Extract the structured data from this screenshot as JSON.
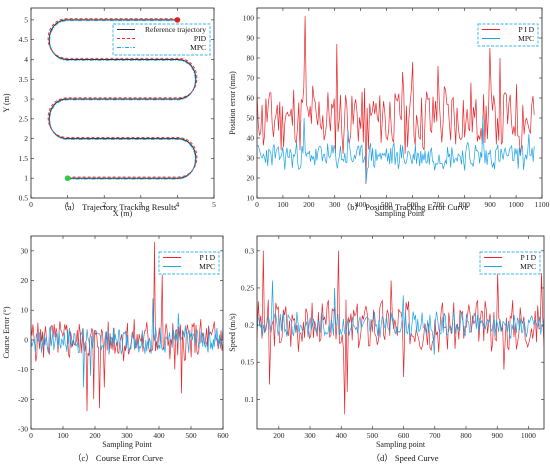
{
  "colors": {
    "pid": "#e8262b",
    "mpc": "#1ea3e6",
    "ref": "#2b2b2b",
    "start": "#2ecc40",
    "end": "#e0201e",
    "legend_border": "#31b7e8"
  },
  "chart_data": [
    {
      "type": "line",
      "caption": "（a） Trajectory Tracking Results",
      "xlabel": "X (m)",
      "ylabel": "Y (m)",
      "xlim": [
        0,
        5
      ],
      "ylim": [
        0.5,
        5.3
      ],
      "xticks": [
        0,
        1,
        2,
        3,
        4,
        5
      ],
      "yticks": [
        0.5,
        1,
        1.5,
        2,
        2.5,
        3,
        3.5,
        4,
        4.5,
        5
      ],
      "legend": {
        "position": "top-right",
        "entries": [
          "Reference trajectory",
          "PID",
          "MPC"
        ]
      },
      "grid": false,
      "series": [
        {
          "name": "Reference trajectory",
          "style": "solid",
          "points": [
            [
              1,
              1
            ],
            [
              4,
              1
            ],
            [
              4.5,
              1.5
            ],
            [
              4,
              2
            ],
            [
              1,
              2
            ],
            [
              0.5,
              2.5
            ],
            [
              1,
              3
            ],
            [
              4,
              3
            ],
            [
              4.5,
              3.5
            ],
            [
              4,
              4
            ],
            [
              1,
              4
            ],
            [
              0.5,
              4.5
            ],
            [
              1,
              5
            ],
            [
              4,
              5
            ]
          ]
        },
        {
          "name": "PID",
          "style": "dashed"
        },
        {
          "name": "MPC",
          "style": "dashdot"
        }
      ],
      "markers": [
        {
          "label": "start",
          "x": 1,
          "y": 1,
          "color": "#2ecc40"
        },
        {
          "label": "end",
          "x": 4,
          "y": 5,
          "color": "#e0201e"
        }
      ]
    },
    {
      "type": "line",
      "caption": "（b） Position Tracking Error Curve",
      "xlabel": "Sampling Point",
      "ylabel": "Position error (mm)",
      "xlim": [
        0,
        1100
      ],
      "ylim": [
        10,
        105
      ],
      "xticks": [
        0,
        100,
        200,
        300,
        400,
        500,
        600,
        700,
        800,
        900,
        1000,
        1100
      ],
      "yticks": [
        10,
        20,
        30,
        40,
        50,
        60,
        70,
        80,
        90,
        100
      ],
      "legend": {
        "position": "top-right",
        "entries": [
          "P I D",
          "MPC"
        ]
      },
      "series": [
        {
          "name": "P I D",
          "n": 220,
          "x_start": 0,
          "x_end": 1070,
          "base": 50,
          "amp": 16,
          "min": 15,
          "seed": 11,
          "spikes": [
            [
              185,
              101
            ],
            [
              310,
              87
            ],
            [
              420,
              17
            ],
            [
              560,
              73
            ],
            [
              600,
              78
            ],
            [
              700,
              76
            ],
            [
              900,
              85
            ],
            [
              940,
              80
            ]
          ]
        },
        {
          "name": "MPC",
          "n": 260,
          "x_start": 0,
          "x_end": 1070,
          "base": 31,
          "amp": 6,
          "min": 15,
          "seed": 23,
          "spikes": [
            [
              180,
              50
            ],
            [
              350,
              44
            ],
            [
              420,
              18
            ],
            [
              870,
              51
            ],
            [
              1050,
              42
            ]
          ]
        }
      ]
    },
    {
      "type": "line",
      "caption": "（c） Course Error Curve",
      "xlabel": "Sampling Point",
      "ylabel": "Course Error (°)",
      "xlim": [
        0,
        600
      ],
      "ylim": [
        -30,
        35
      ],
      "xticks": [
        0,
        100,
        200,
        300,
        400,
        500,
        600
      ],
      "yticks": [
        -30,
        -20,
        -10,
        0,
        10,
        20,
        30
      ],
      "legend": {
        "position": "top-right",
        "entries": [
          "P I D",
          "MPC"
        ]
      },
      "series": [
        {
          "name": "P I D",
          "n": 200,
          "x_start": 0,
          "x_end": 600,
          "base": 0,
          "amp": 6,
          "min": -35,
          "seed": 5,
          "spikes": [
            [
              175,
              -24
            ],
            [
              195,
              -20
            ],
            [
              215,
              -23
            ],
            [
              230,
              -16
            ],
            [
              385,
              33
            ],
            [
              410,
              22
            ],
            [
              450,
              -10
            ],
            [
              470,
              -18
            ]
          ]
        },
        {
          "name": "MPC",
          "n": 220,
          "x_start": 0,
          "x_end": 600,
          "base": 0,
          "amp": 4,
          "min": -35,
          "seed": 7,
          "spikes": [
            [
              165,
              -16
            ],
            [
              185,
              -12
            ],
            [
              380,
              14
            ],
            [
              460,
              9
            ]
          ]
        }
      ]
    },
    {
      "type": "line",
      "caption": "（d） Speed Curve",
      "xlabel": "Sampling point",
      "ylabel": "Speed (m/s)",
      "xlim": [
        130,
        1050
      ],
      "ylim": [
        0.06,
        0.32
      ],
      "xticks": [
        200,
        300,
        400,
        500,
        600,
        700,
        800,
        900,
        1000
      ],
      "yticks": [
        0.1,
        0.15,
        0.2,
        0.25,
        0.3
      ],
      "legend": {
        "position": "top-right",
        "entries": [
          "P I D",
          "MPC"
        ]
      },
      "series": [
        {
          "name": "P I D",
          "n": 230,
          "x_start": 130,
          "x_end": 1050,
          "base": 0.2,
          "amp": 0.03,
          "min": 0.06,
          "seed": 3,
          "spikes": [
            [
              150,
              0.3
            ],
            [
              170,
              0.12
            ],
            [
              390,
              0.3
            ],
            [
              410,
              0.08
            ],
            [
              420,
              0.11
            ],
            [
              560,
              0.26
            ],
            [
              600,
              0.13
            ],
            [
              900,
              0.27
            ],
            [
              920,
              0.14
            ],
            [
              1040,
              0.27
            ]
          ]
        },
        {
          "name": "MPC",
          "n": 260,
          "x_start": 130,
          "x_end": 1050,
          "base": 0.2,
          "amp": 0.015,
          "min": 0.06,
          "seed": 9,
          "spikes": [
            [
              180,
              0.26
            ],
            [
              380,
              0.25
            ],
            [
              600,
              0.24
            ],
            [
              700,
              0.16
            ]
          ]
        }
      ]
    }
  ]
}
